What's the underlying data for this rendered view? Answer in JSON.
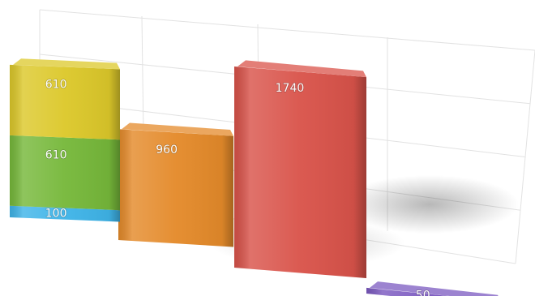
{
  "chart_data": {
    "type": "bar",
    "stacked": true,
    "grid": true,
    "legend": "none",
    "title": "",
    "xlabel": "",
    "ylabel": "",
    "categories": [
      "",
      "",
      "",
      ""
    ],
    "segments": [
      [
        {
          "value": 100,
          "label": "100",
          "color": "#3fb4e8"
        },
        {
          "value": 610,
          "label": "610",
          "color": "#76b83a"
        },
        {
          "value": 610,
          "label": "610",
          "color": "#dcc82a"
        }
      ],
      [
        {
          "value": 960,
          "label": "960",
          "color": "#e48a2a"
        }
      ],
      [
        {
          "value": 1740,
          "label": "1740",
          "color": "#d9534a"
        }
      ],
      [
        {
          "value": 50,
          "label": "50",
          "color": "#7b59c0"
        }
      ]
    ]
  }
}
